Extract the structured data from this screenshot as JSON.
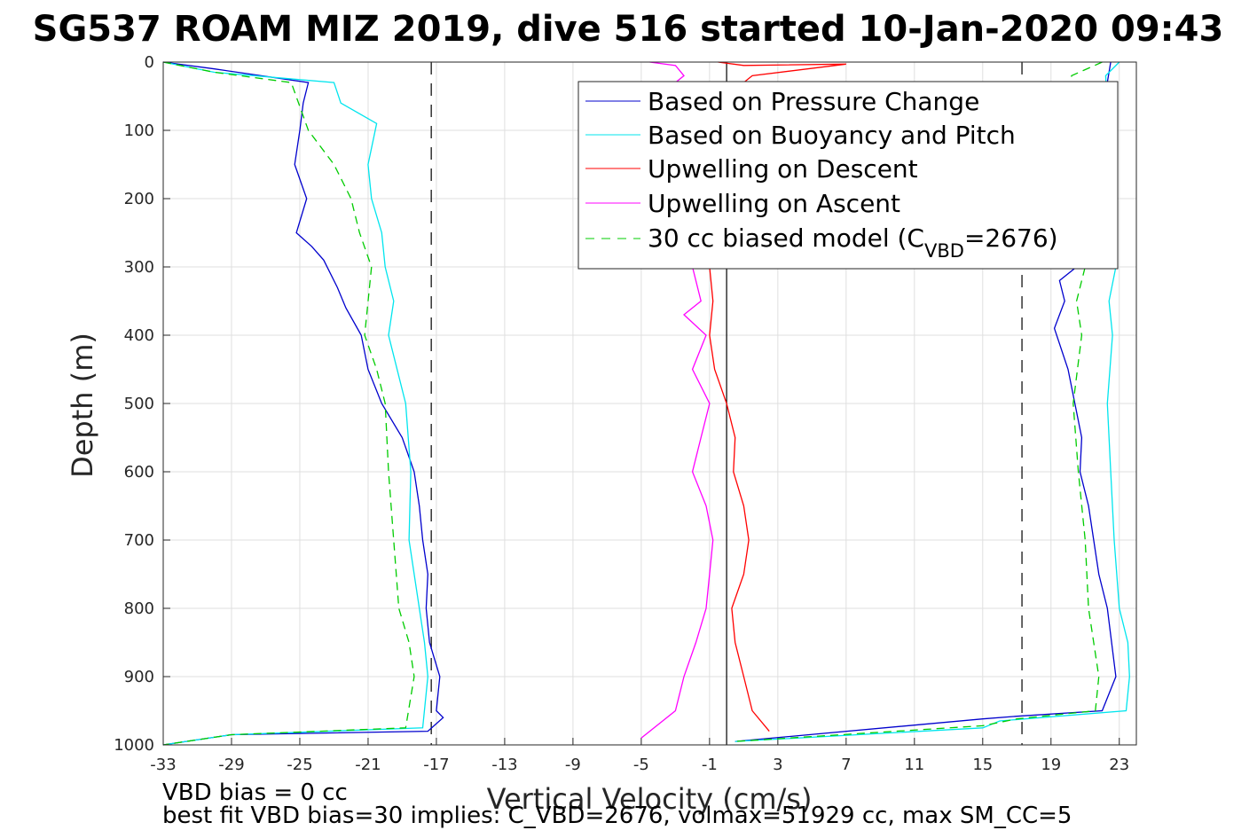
{
  "chart_data": {
    "type": "line",
    "title": "SG537 ROAM MIZ 2019, dive 516 started 10-Jan-2020 09:43",
    "xlabel": "Vertical Velocity (cm/s)",
    "ylabel": "Depth (m)",
    "xlim": [
      -33,
      24
    ],
    "ylim": [
      0,
      1000
    ],
    "y_reversed": true,
    "x_ticks": [
      -33,
      -29,
      -25,
      -21,
      -17,
      -13,
      -9,
      -5,
      -1,
      3,
      7,
      11,
      15,
      19,
      23
    ],
    "y_ticks": [
      0,
      100,
      200,
      300,
      400,
      500,
      600,
      700,
      800,
      900,
      1000
    ],
    "grid": true,
    "legend_position": "top-right",
    "reference_lines": [
      {
        "x": -17.3,
        "style": "dashed",
        "color": "#000000"
      },
      {
        "x": 17.3,
        "style": "dashed",
        "color": "#000000"
      },
      {
        "x": 0.0,
        "style": "solid",
        "color": "#000000"
      }
    ],
    "series": [
      {
        "name": "Based on Pressure Change",
        "color": "#0000cd",
        "style": "solid",
        "segments": [
          {
            "x": [
              -33,
              -30,
              -24.5,
              -24.8,
              -25.0,
              -25.3,
              -24.6,
              -25.2,
              -24.3,
              -23.6,
              -22.8,
              -22.3,
              -21.4,
              -21.0,
              -20.2,
              -19.0,
              -18.3,
              -18.0,
              -17.8,
              -17.5,
              -17.6,
              -17.4,
              -16.8,
              -17.0,
              -16.6,
              -17.5,
              -29,
              -33
            ],
            "y": [
              0,
              10,
              30,
              60,
              100,
              150,
              200,
              250,
              270,
              290,
              330,
              360,
              400,
              450,
              500,
              550,
              600,
              650,
              700,
              750,
              800,
              850,
              900,
              950,
              960,
              980,
              985,
              1000
            ]
          },
          {
            "x": [
              22.5,
              20.5,
              19.5,
              19.8,
              19.2,
              20.0,
              20.4,
              20.8,
              20.7,
              21.2,
              21.5,
              21.8,
              22.3,
              22.8,
              22.0,
              17.0,
              15.0,
              0.5
            ],
            "y": [
              0,
              300,
              320,
              350,
              390,
              450,
              500,
              550,
              600,
              650,
              700,
              750,
              800,
              900,
              950,
              958,
              962,
              995
            ]
          }
        ]
      },
      {
        "name": "Based on Buoyancy and Pitch",
        "color": "#00e5ee",
        "style": "solid",
        "segments": [
          {
            "x": [
              -33,
              -30,
              -23.0,
              -22.6,
              -20.5,
              -21.0,
              -20.8,
              -20.2,
              -20.0,
              -19.5,
              -19.8,
              -18.8,
              -18.5,
              -18.6,
              -18.0,
              -17.7,
              -17.5,
              -17.8,
              -29,
              -33
            ],
            "y": [
              0,
              15,
              30,
              60,
              90,
              150,
              200,
              250,
              300,
              350,
              400,
              500,
              600,
              700,
              800,
              850,
              900,
              975,
              985,
              1000
            ]
          },
          {
            "x": [
              23.0,
              22.2,
              22.8,
              22.4,
              22.6,
              22.3,
              22.5,
              22.7,
              23.0,
              23.5,
              23.6,
              23.4,
              16.0,
              15.0,
              0.5
            ],
            "y": [
              0,
              20,
              300,
              350,
              400,
              500,
              600,
              700,
              800,
              850,
              900,
              950,
              965,
              975,
              995
            ]
          }
        ]
      },
      {
        "name": "Upwelling on Descent",
        "color": "#ff0000",
        "style": "solid",
        "segments": [
          {
            "x": [
              -0.5,
              1.0,
              7.0,
              1.5,
              0.5,
              -1.0,
              -0.8,
              -1.0,
              -0.7,
              0.0,
              0.5,
              0.4,
              1.0,
              1.3,
              1.0,
              0.3,
              0.5,
              1.0,
              1.5,
              2.5
            ],
            "y": [
              0,
              5,
              3,
              20,
              40,
              300,
              350,
              400,
              450,
              500,
              550,
              600,
              650,
              700,
              750,
              800,
              850,
              900,
              950,
              980
            ]
          }
        ]
      },
      {
        "name": "Upwelling on Ascent",
        "color": "#ff00ff",
        "style": "solid",
        "segments": [
          {
            "x": [
              -4.5,
              -3.0,
              -2.5,
              -3.0,
              -2.0,
              -1.5,
              -2.5,
              -1.2,
              -2.0,
              -1.0,
              -1.5,
              -2.0,
              -1.2,
              -0.8,
              -1.0,
              -1.2,
              -1.8,
              -2.5,
              -3.0,
              -5.0
            ],
            "y": [
              0,
              5,
              20,
              30,
              300,
              350,
              370,
              400,
              450,
              500,
              550,
              600,
              650,
              700,
              750,
              800,
              850,
              900,
              950,
              990
            ]
          }
        ]
      },
      {
        "name": "30 cc biased model (CVBD=2676)",
        "color": "#00cc00",
        "style": "dashed",
        "segments": [
          {
            "x": [
              -33,
              -30,
              -25.5,
              -24.5,
              -23.0,
              -22.0,
              -21.5,
              -20.8,
              -21.2,
              -20.5,
              -20.0,
              -19.8,
              -19.5,
              -19.2,
              -18.6,
              -18.3,
              -18.8,
              -29,
              -33
            ],
            "y": [
              0,
              15,
              30,
              100,
              150,
              200,
              250,
              300,
              400,
              450,
              500,
              600,
              700,
              800,
              850,
              900,
              975,
              985,
              1000
            ]
          },
          {
            "x": [
              22.0,
              20.2,
              21.0,
              20.5,
              20.8,
              20.3,
              20.6,
              21.0,
              21.2,
              21.5,
              21.8,
              21.6,
              17.0,
              15.0,
              0.5
            ],
            "y": [
              0,
              20,
              300,
              350,
              400,
              500,
              600,
              700,
              800,
              850,
              900,
              950,
              962,
              972,
              995
            ]
          }
        ]
      }
    ]
  },
  "legend": {
    "entries": [
      {
        "label": "Based on Pressure Change"
      },
      {
        "label": "Based on Buoyancy and Pitch"
      },
      {
        "label": "Upwelling on Descent"
      },
      {
        "label": "Upwelling on Ascent"
      },
      {
        "label_pre": "30 cc biased model (C",
        "label_sub": "VBD",
        "label_post": "=2676)"
      }
    ]
  },
  "footer": {
    "line1": "VBD bias = 0 cc",
    "line2": "best fit VBD bias=30 implies: C_VBD=2676, volmax=51929 cc, max SM_CC=5"
  }
}
